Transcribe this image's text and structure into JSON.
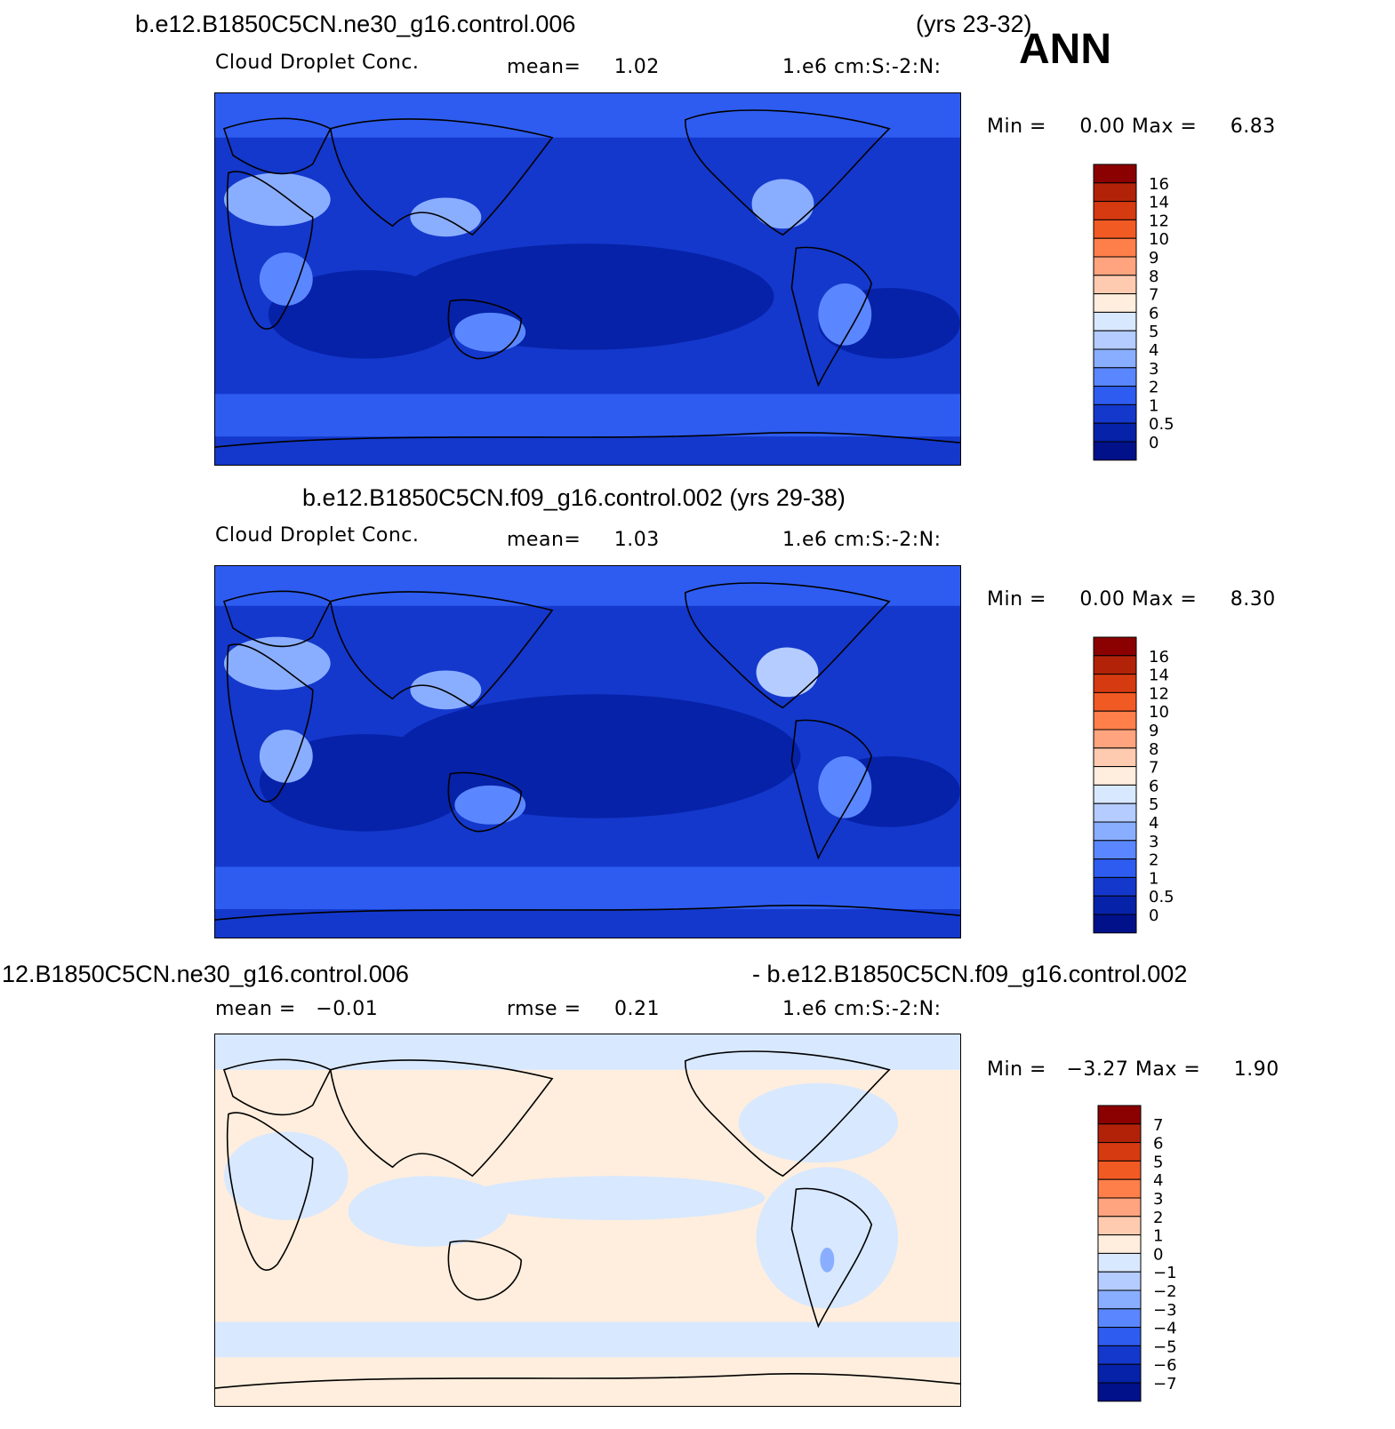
{
  "header": {
    "season": "ANN"
  },
  "chart_data": [
    {
      "type": "heatmap",
      "title": "b.e12.B1850C5CN.ne30_g16.control.006",
      "years": "(yrs 23-32)",
      "variable": "Cloud Droplet Conc.",
      "mean_text": "mean=     1.02",
      "units": "1.e6 cm:S:-2:N:",
      "minmax_text": "Min =     0.00 Max =     6.83",
      "min": 0.0,
      "max": 6.83,
      "mean": 1.02,
      "colorbar": {
        "levels": [
          "16",
          "14",
          "12",
          "10",
          "9",
          "8",
          "7",
          "6",
          "5",
          "4",
          "3",
          "2",
          "1",
          "0.5",
          "0"
        ],
        "colors": [
          "#8b0000",
          "#b22208",
          "#d63a10",
          "#f25a24",
          "#ff7f4a",
          "#ffa47e",
          "#ffcbb0",
          "#ffeedd",
          "#d8e8ff",
          "#b4ccff",
          "#8aaeff",
          "#5a87ff",
          "#2e5cf0",
          "#1438cc",
          "#0622a8",
          "#00118a"
        ]
      }
    },
    {
      "type": "heatmap",
      "title": "b.e12.B1850C5CN.f09_g16.control.002 (yrs 29-38)",
      "variable": "Cloud Droplet Conc.",
      "mean_text": "mean=     1.03",
      "units": "1.e6 cm:S:-2:N:",
      "minmax_text": "Min =     0.00 Max =     8.30",
      "min": 0.0,
      "max": 8.3,
      "mean": 1.03,
      "colorbar": {
        "levels": [
          "16",
          "14",
          "12",
          "10",
          "9",
          "8",
          "7",
          "6",
          "5",
          "4",
          "3",
          "2",
          "1",
          "0.5",
          "0"
        ],
        "colors": [
          "#8b0000",
          "#b22208",
          "#d63a10",
          "#f25a24",
          "#ff7f4a",
          "#ffa47e",
          "#ffcbb0",
          "#ffeedd",
          "#d8e8ff",
          "#b4ccff",
          "#8aaeff",
          "#5a87ff",
          "#2e5cf0",
          "#1438cc",
          "#0622a8",
          "#00118a"
        ]
      }
    },
    {
      "type": "heatmap",
      "title_left": "12.B1850C5CN.ne30_g16.control.006",
      "title_right": "- b.e12.B1850C5CN.f09_g16.control.002",
      "mean_text": "mean =   −0.01",
      "rmse_text": "rmse =     0.21",
      "units": "1.e6 cm:S:-2:N:",
      "minmax_text": "Min =   −3.27 Max =     1.90",
      "min": -3.27,
      "max": 1.9,
      "mean": -0.01,
      "rmse": 0.21,
      "colorbar": {
        "levels": [
          "7",
          "6",
          "5",
          "4",
          "3",
          "2",
          "1",
          "0",
          "−1",
          "−2",
          "−3",
          "−4",
          "−5",
          "−6",
          "−7"
        ],
        "colors": [
          "#8b0000",
          "#b22208",
          "#d63a10",
          "#f25a24",
          "#ff7f4a",
          "#ffa47e",
          "#ffcbb0",
          "#ffeedd",
          "#d8e8ff",
          "#b4ccff",
          "#8aaeff",
          "#5a87ff",
          "#2e5cf0",
          "#1438cc",
          "#0622a8",
          "#00118a"
        ]
      }
    }
  ]
}
